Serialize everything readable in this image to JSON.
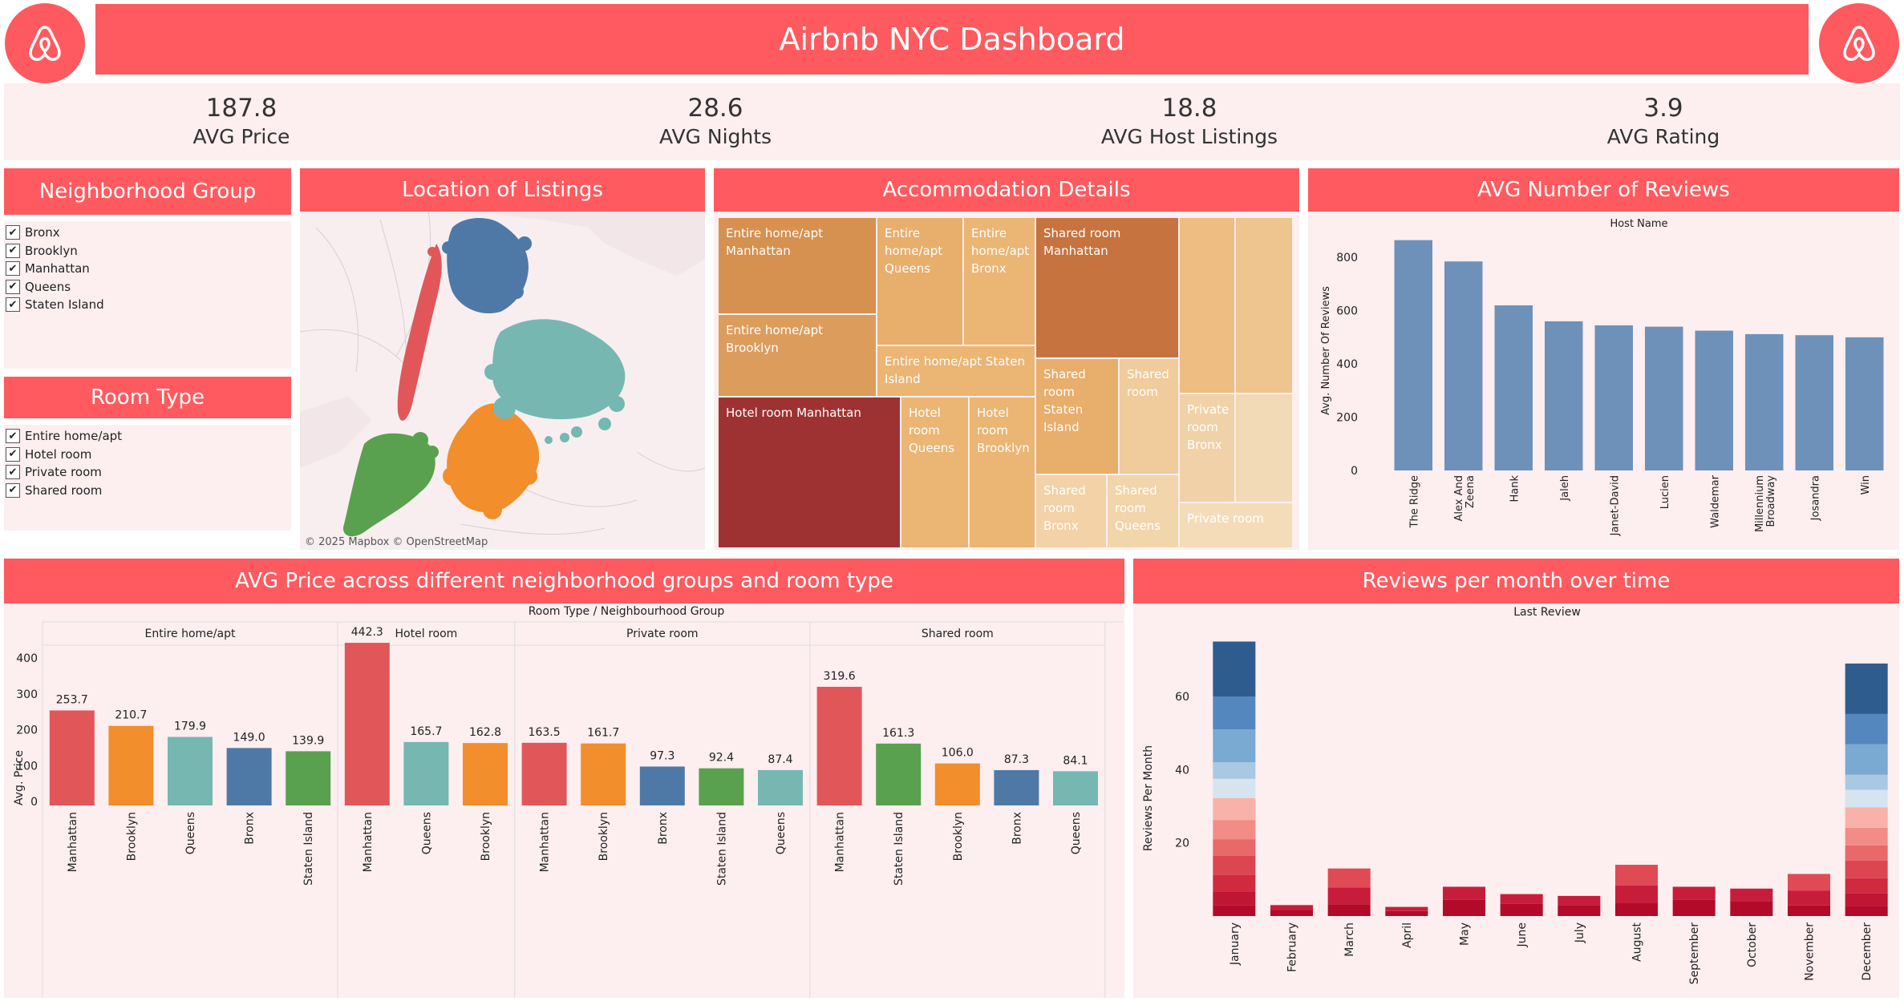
{
  "header": {
    "title": "Airbnb NYC Dashboard",
    "logo_icon": "airbnb-logo-icon",
    "brand_color": "#ff5a5f"
  },
  "kpis": [
    {
      "value": "187.8",
      "label": "AVG Price"
    },
    {
      "value": "28.6",
      "label": "AVG Nights"
    },
    {
      "value": "18.8",
      "label": "AVG Host Listings"
    },
    {
      "value": "3.9",
      "label": "AVG Rating"
    }
  ],
  "filters": {
    "neighborhood": {
      "title": "Neighborhood Group",
      "items": [
        "Bronx",
        "Brooklyn",
        "Manhattan",
        "Queens",
        "Staten Island"
      ]
    },
    "room_type": {
      "title": "Room Type",
      "items": [
        "Entire home/apt",
        "Hotel room",
        "Private room",
        "Shared room"
      ]
    },
    "check_glyph": "✔"
  },
  "map": {
    "title": "Location of Listings",
    "attribution": "© 2025 Mapbox © OpenStreetMap"
  },
  "treemap": {
    "title": "Accommodation Details",
    "cells": [
      "Entire home/apt Manhattan",
      "Entire home/apt Queens",
      "Entire home/apt Bronx",
      "Entire home/apt Brooklyn",
      "Entire home/apt Staten Island",
      "Shared room Manhattan",
      "Shared room Staten Island",
      "Shared room",
      "Shared room Bronx",
      "Shared room Queens",
      "Private room Bronx",
      "Private room",
      "Hotel room Manhattan",
      "Hotel room Queens",
      "Hotel room Brooklyn"
    ]
  },
  "reviews_panel": {
    "title": "AVG Number of Reviews"
  },
  "price_panel": {
    "title": "AVG Price across different neighborhood groups and room type"
  },
  "monthly_panel": {
    "title": "Reviews per month over time"
  },
  "chart_data": [
    {
      "type": "bar",
      "title": "AVG Number of Reviews",
      "xlabel": "Host Name",
      "ylabel": "Avg. Number Of Reviews",
      "categories": [
        "The Ridge",
        "Alex And Zeena",
        "Hank",
        "Jaleh",
        "Janet-David",
        "Lucien",
        "Waldemar",
        "Millennium Broadway",
        "Josandra",
        "Win"
      ],
      "values": [
        865,
        785,
        620,
        560,
        545,
        540,
        525,
        512,
        508,
        500
      ],
      "ylim": [
        0,
        900
      ],
      "yticks": [
        0,
        200,
        400,
        600,
        800
      ],
      "color": "#6e91b9",
      "grid": false
    },
    {
      "type": "bar",
      "title": "AVG Price across different neighborhood groups and room type",
      "header_label": "Room Type  /  Neighbourhood Group",
      "ylabel": "Avg. Price",
      "ylim": [
        0,
        480
      ],
      "yticks": [
        0,
        100,
        200,
        300,
        400
      ],
      "groups": [
        {
          "name": "Entire home/apt",
          "bars": [
            {
              "label": "Manhattan",
              "value": 253.7
            },
            {
              "label": "Brooklyn",
              "value": 210.7
            },
            {
              "label": "Queens",
              "value": 179.9
            },
            {
              "label": "Bronx",
              "value": 149.0
            },
            {
              "label": "Staten Island",
              "value": 139.9
            }
          ]
        },
        {
          "name": "Hotel room",
          "bars": [
            {
              "label": "Manhattan",
              "value": 442.3
            },
            {
              "label": "Queens",
              "value": 165.7
            },
            {
              "label": "Brooklyn",
              "value": 162.8
            }
          ]
        },
        {
          "name": "Private room",
          "bars": [
            {
              "label": "Manhattan",
              "value": 163.5
            },
            {
              "label": "Brooklyn",
              "value": 161.7
            },
            {
              "label": "Bronx",
              "value": 97.3
            },
            {
              "label": "Staten Island",
              "value": 92.4
            },
            {
              "label": "Queens",
              "value": 87.4
            }
          ]
        },
        {
          "name": "Shared room",
          "bars": [
            {
              "label": "Manhattan",
              "value": 319.6
            },
            {
              "label": "Staten Island",
              "value": 161.3
            },
            {
              "label": "Brooklyn",
              "value": 106.0
            },
            {
              "label": "Bronx",
              "value": 87.3
            },
            {
              "label": "Queens",
              "value": 84.1
            }
          ]
        }
      ],
      "colors": {
        "Manhattan": "#e15759",
        "Brooklyn": "#f28e2b",
        "Queens": "#76b7b2",
        "Bronx": "#4e79a7",
        "Staten Island": "#59a14f"
      }
    },
    {
      "type": "bar",
      "title": "Reviews per month over time",
      "xlabel": "Last Review",
      "ylabel": "Reviews Per Month",
      "categories": [
        "January",
        "February",
        "March",
        "April",
        "May",
        "June",
        "July",
        "August",
        "September",
        "October",
        "November",
        "December"
      ],
      "values": [
        75,
        3,
        13,
        2.5,
        8,
        6,
        5.5,
        14,
        8,
        7.5,
        11.5,
        69
      ],
      "ylim": [
        0,
        75
      ],
      "yticks": [
        20,
        40,
        60
      ],
      "stacked": true
    }
  ]
}
